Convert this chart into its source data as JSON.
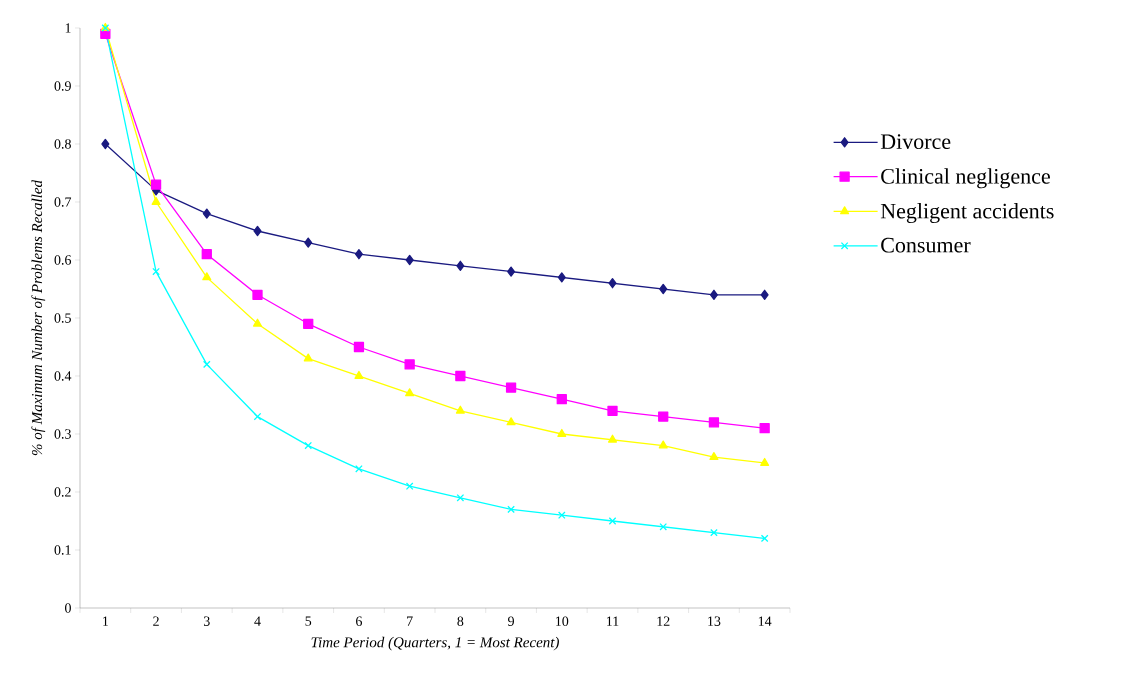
{
  "chart_data": {
    "type": "line",
    "xlabel": "Time Period (Quarters, 1 = Most Recent)",
    "ylabel": "% of Maximum Number of Problems Recalled",
    "categories": [
      "1",
      "2",
      "3",
      "4",
      "5",
      "6",
      "7",
      "8",
      "9",
      "10",
      "11",
      "12",
      "13",
      "14"
    ],
    "ylim": [
      0,
      1
    ],
    "yticks": [
      0,
      0.1,
      0.2,
      0.3,
      0.4,
      0.5,
      0.6,
      0.7,
      0.8,
      0.9,
      1
    ],
    "grid": false,
    "legend": "right",
    "line_style": "solid",
    "series": [
      {
        "name": "Divorce",
        "color": "#1a1a80",
        "marker": "diamond",
        "values": [
          0.8,
          0.72,
          0.68,
          0.65,
          0.63,
          0.61,
          0.6,
          0.59,
          0.58,
          0.57,
          0.56,
          0.55,
          0.54,
          0.54
        ]
      },
      {
        "name": "Clinical negligence",
        "color": "#ff00ff",
        "marker": "square",
        "values": [
          0.99,
          0.73,
          0.61,
          0.54,
          0.49,
          0.45,
          0.42,
          0.4,
          0.38,
          0.36,
          0.34,
          0.33,
          0.32,
          0.31
        ]
      },
      {
        "name": "Negligent accidents",
        "color": "#ffff00",
        "marker": "triangle",
        "values": [
          1.0,
          0.7,
          0.57,
          0.49,
          0.43,
          0.4,
          0.37,
          0.34,
          0.32,
          0.3,
          0.29,
          0.28,
          0.26,
          0.25
        ]
      },
      {
        "name": "Consumer",
        "color": "#00ffff",
        "marker": "cross",
        "values": [
          1.0,
          0.58,
          0.42,
          0.33,
          0.28,
          0.24,
          0.21,
          0.19,
          0.17,
          0.16,
          0.15,
          0.14,
          0.13,
          0.12
        ]
      }
    ]
  }
}
